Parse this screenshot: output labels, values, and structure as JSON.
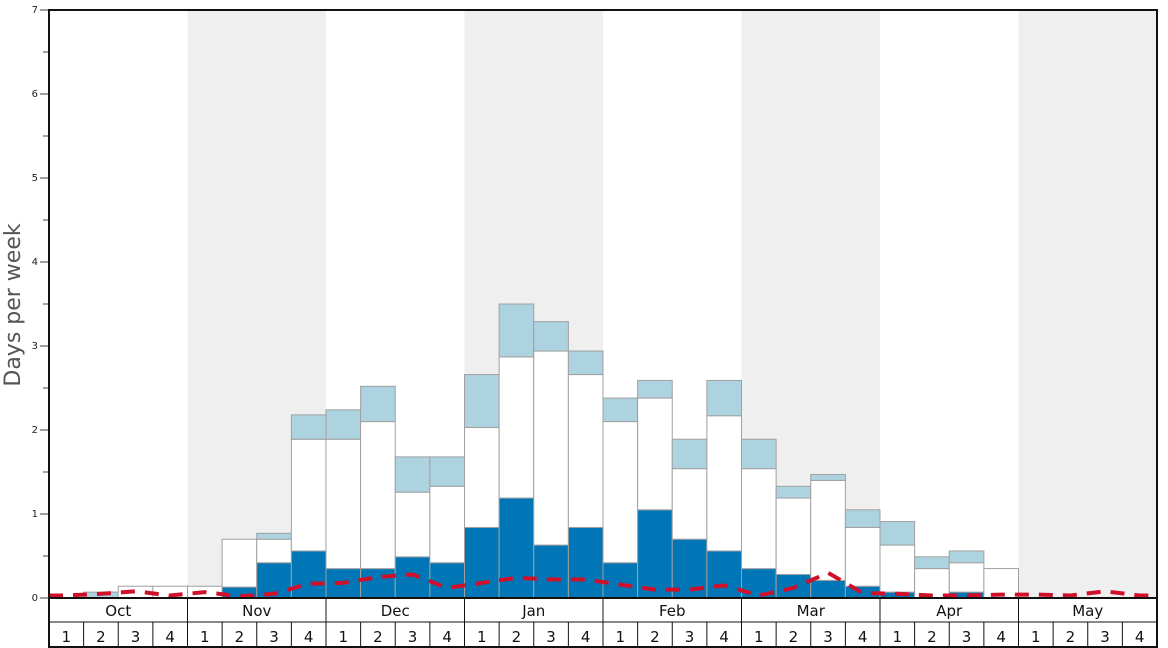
{
  "chart_data": {
    "type": "bar",
    "title": "",
    "xlabel": "",
    "ylabel": "Days per week",
    "ylim": [
      0,
      7
    ],
    "y_ticks": [
      "0",
      "1",
      "2",
      "3",
      "4",
      "5",
      "6",
      "7"
    ],
    "stacked": true,
    "months": [
      "Oct",
      "Nov",
      "Dec",
      "Jan",
      "Feb",
      "Mar",
      "Apr",
      "May"
    ],
    "week_labels": [
      "1",
      "2",
      "3",
      "4"
    ],
    "series": [
      {
        "color": "#0076b6",
        "values": [
          0,
          0,
          0,
          0,
          0,
          0.13,
          0.42,
          0.56,
          0.35,
          0.35,
          0.49,
          0.42,
          0.84,
          1.19,
          0.63,
          0.84,
          0.42,
          1.05,
          0.7,
          0.56,
          0.35,
          0.28,
          0.21,
          0.14,
          0.07,
          0,
          0.07,
          0,
          0,
          0,
          0,
          0
        ]
      },
      {
        "color": "#ffffff",
        "values": [
          0,
          0,
          0.14,
          0.14,
          0.14,
          0.57,
          0.28,
          1.33,
          1.54,
          1.75,
          0.77,
          0.91,
          1.19,
          1.68,
          2.31,
          1.82,
          1.68,
          1.33,
          0.84,
          1.61,
          1.19,
          0.91,
          1.19,
          0.7,
          0.56,
          0.35,
          0.35,
          0.35,
          0,
          0,
          0,
          0
        ]
      },
      {
        "color": "#aed3e0",
        "values": [
          0,
          0.07,
          0,
          0,
          0,
          0,
          0.07,
          0.29,
          0.35,
          0.42,
          0.42,
          0.35,
          0.63,
          0.63,
          0.35,
          0.28,
          0.28,
          0.21,
          0.35,
          0.42,
          0.35,
          0.14,
          0.07,
          0.21,
          0.28,
          0.14,
          0.14,
          0,
          0,
          0,
          0,
          0
        ]
      }
    ],
    "line": {
      "style": "dashed",
      "color": "#d0102a",
      "values": [
        0.03,
        0.05,
        0.08,
        0.03,
        0.07,
        0.02,
        0.05,
        0.17,
        0.18,
        0.25,
        0.28,
        0.12,
        0.18,
        0.24,
        0.22,
        0.22,
        0.16,
        0.1,
        0.1,
        0.15,
        0.03,
        0.12,
        0.3,
        0.06,
        0.05,
        0.03,
        0.03,
        0.04,
        0.04,
        0.03,
        0.08,
        0.03
      ]
    },
    "shaded_months": [
      "Nov",
      "Jan",
      "Mar",
      "May"
    ],
    "grid": false,
    "legend": "none"
  }
}
